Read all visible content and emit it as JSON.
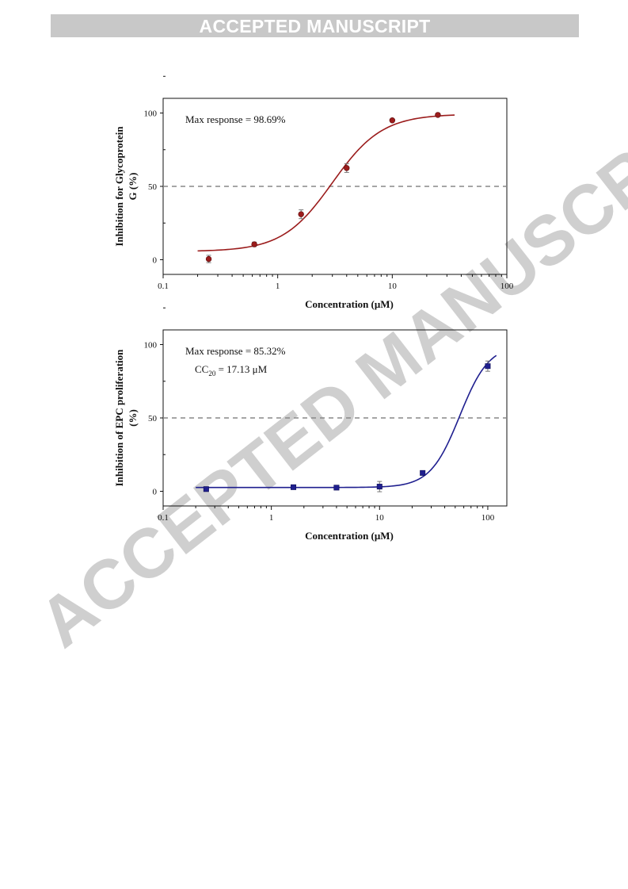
{
  "banner": "ACCEPTED MANUSCRIPT",
  "watermark": "ACCEPTED MANUSCRIPT",
  "chart_data": [
    {
      "type": "scatter",
      "xscale": "log",
      "xlim": [
        0.1,
        100
      ],
      "ylim": [
        -10,
        110
      ],
      "xticks": [
        "0.1",
        "1",
        "10",
        "100"
      ],
      "yticks": [
        "0",
        "50",
        "100"
      ],
      "xlabel": "Concentration (μM)",
      "ylabel_lines": [
        "Inhibition for Glycoprotein",
        "G (%)"
      ],
      "annotations": [
        {
          "text": "Max response = 98.69%"
        }
      ],
      "threshold": 50,
      "grid": false,
      "color": "#9b1c1c",
      "marker": "circle",
      "points": [
        {
          "x": 0.25,
          "y": 0.5,
          "err": 2.5
        },
        {
          "x": 0.625,
          "y": 10.5,
          "err": 1.5
        },
        {
          "x": 1.6,
          "y": 31,
          "err": 3
        },
        {
          "x": 4,
          "y": 62.5,
          "err": 3
        },
        {
          "x": 10,
          "y": 95,
          "err": 0.8
        },
        {
          "x": 25,
          "y": 98.7,
          "err": 0.8
        }
      ],
      "fit": {
        "bottom": 5.6,
        "top": 99.3,
        "ec50": 3.0,
        "hill": 2.0,
        "xrange": [
          0.2,
          35
        ]
      }
    },
    {
      "type": "scatter",
      "xscale": "log",
      "xlim": [
        0.1,
        150
      ],
      "ylim": [
        -10,
        110
      ],
      "xticks": [
        "0.1",
        "1",
        "10",
        "100"
      ],
      "yticks": [
        "0",
        "50",
        "100"
      ],
      "xlabel": "Concentration (μM)",
      "ylabel_lines": [
        "Inhibition of EPC proliferation",
        "(%)"
      ],
      "annotations": [
        {
          "text": "Max response = 85.32%"
        },
        {
          "text": "CC",
          "sub": "20",
          "after": " = 17.13 μM"
        }
      ],
      "threshold": 50,
      "grid": false,
      "color": "#1f1f8f",
      "marker": "square",
      "points": [
        {
          "x": 0.25,
          "y": 1.5,
          "err": 1.5
        },
        {
          "x": 1.6,
          "y": 2.8,
          "err": 1
        },
        {
          "x": 4,
          "y": 2.5,
          "err": 1
        },
        {
          "x": 10,
          "y": 3.2,
          "err": 3.5
        },
        {
          "x": 25,
          "y": 12.5,
          "err": 1
        },
        {
          "x": 100,
          "y": 85.3,
          "err": 3.5
        }
      ],
      "fit": {
        "bottom": 2.6,
        "top": 100,
        "ec50": 55,
        "hill": 3.2,
        "xrange": [
          0.2,
          120
        ]
      }
    }
  ]
}
